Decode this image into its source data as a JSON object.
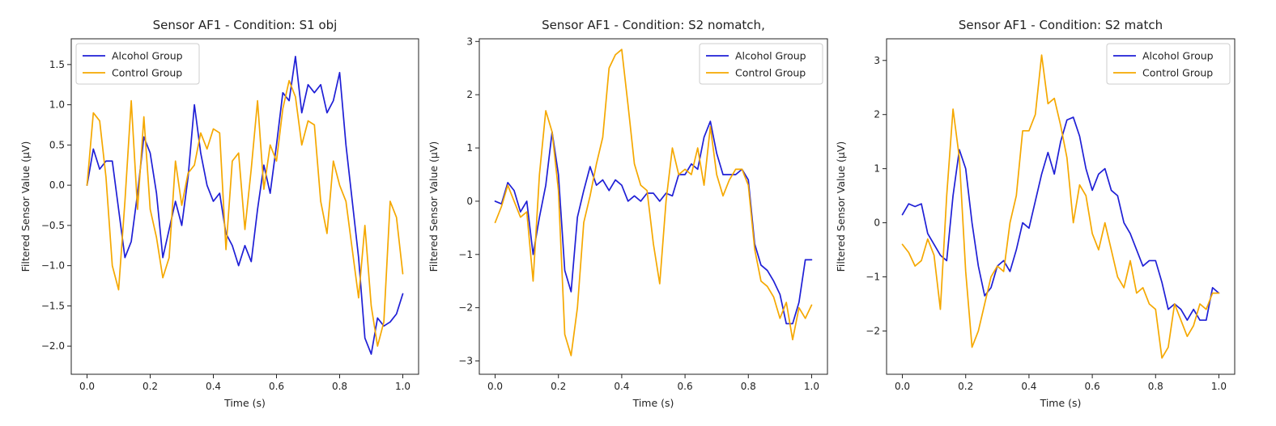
{
  "chart_data": [
    {
      "type": "line",
      "title": "Sensor AF1 - Condition: S1 obj",
      "xlabel": "Time (s)",
      "ylabel": "Filtered Sensor Value (μV)",
      "xlim": [
        0.0,
        1.0
      ],
      "ylim": [
        -2.35,
        1.82
      ],
      "xticks": [
        0.0,
        0.2,
        0.4,
        0.6,
        0.8,
        1.0
      ],
      "xtick_labels": [
        "0.0",
        "0.2",
        "0.4",
        "0.6",
        "0.8",
        "1.0"
      ],
      "yticks": [
        -2.0,
        -1.5,
        -1.0,
        -0.5,
        0.0,
        0.5,
        1.0,
        1.5
      ],
      "ytick_labels": [
        "−2.0",
        "−1.5",
        "−1.0",
        "−0.5",
        "0.0",
        "0.5",
        "1.0",
        "1.5"
      ],
      "legend": "upper left",
      "grid": false,
      "series": [
        {
          "name": "Alcohol Group",
          "color": "#1f1fd6",
          "x": [
            0.0,
            0.02,
            0.04,
            0.06,
            0.08,
            0.1,
            0.12,
            0.14,
            0.16,
            0.18,
            0.2,
            0.22,
            0.24,
            0.26,
            0.28,
            0.3,
            0.32,
            0.34,
            0.36,
            0.38,
            0.4,
            0.42,
            0.44,
            0.46,
            0.48,
            0.5,
            0.52,
            0.54,
            0.56,
            0.58,
            0.6,
            0.62,
            0.64,
            0.66,
            0.68,
            0.7,
            0.72,
            0.74,
            0.76,
            0.78,
            0.8,
            0.82,
            0.84,
            0.86,
            0.88,
            0.9,
            0.92,
            0.94,
            0.96,
            0.98,
            1.0
          ],
          "y": [
            0.0,
            0.45,
            0.2,
            0.3,
            0.3,
            -0.3,
            -0.9,
            -0.7,
            -0.1,
            0.6,
            0.4,
            -0.1,
            -0.9,
            -0.55,
            -0.2,
            -0.5,
            0.1,
            1.0,
            0.4,
            0.0,
            -0.2,
            -0.1,
            -0.6,
            -0.75,
            -1.0,
            -0.75,
            -0.95,
            -0.3,
            0.25,
            -0.1,
            0.5,
            1.15,
            1.05,
            1.6,
            0.9,
            1.25,
            1.15,
            1.25,
            0.9,
            1.05,
            1.4,
            0.5,
            -0.2,
            -0.9,
            -1.9,
            -2.1,
            -1.65,
            -1.75,
            -1.7,
            -1.6,
            -1.35
          ]
        },
        {
          "name": "Control Group",
          "color": "#f5a800",
          "x": [
            0.0,
            0.02,
            0.04,
            0.06,
            0.08,
            0.1,
            0.12,
            0.14,
            0.16,
            0.18,
            0.2,
            0.22,
            0.24,
            0.26,
            0.28,
            0.3,
            0.32,
            0.34,
            0.36,
            0.38,
            0.4,
            0.42,
            0.44,
            0.46,
            0.48,
            0.5,
            0.52,
            0.54,
            0.56,
            0.58,
            0.6,
            0.62,
            0.64,
            0.66,
            0.68,
            0.7,
            0.72,
            0.74,
            0.76,
            0.78,
            0.8,
            0.82,
            0.84,
            0.86,
            0.88,
            0.9,
            0.92,
            0.94,
            0.96,
            0.98,
            1.0
          ],
          "y": [
            0.0,
            0.9,
            0.8,
            0.1,
            -1.0,
            -1.3,
            -0.2,
            1.05,
            -0.3,
            0.85,
            -0.3,
            -0.65,
            -1.15,
            -0.9,
            0.3,
            -0.25,
            0.15,
            0.25,
            0.65,
            0.45,
            0.7,
            0.65,
            -0.8,
            0.3,
            0.4,
            -0.55,
            0.2,
            1.05,
            -0.05,
            0.5,
            0.3,
            0.95,
            1.3,
            1.1,
            0.5,
            0.8,
            0.75,
            -0.2,
            -0.6,
            0.3,
            0.0,
            -0.2,
            -0.8,
            -1.4,
            -0.5,
            -1.5,
            -2.0,
            -1.7,
            -0.2,
            -0.4,
            -1.1
          ]
        }
      ]
    },
    {
      "type": "line",
      "title": "Sensor AF1 - Condition: S2 nomatch,",
      "xlabel": "Time (s)",
      "ylabel": "Filtered Sensor Value (μV)",
      "xlim": [
        0.0,
        1.0
      ],
      "ylim": [
        -3.25,
        3.05
      ],
      "xticks": [
        0.0,
        0.2,
        0.4,
        0.6,
        0.8,
        1.0
      ],
      "xtick_labels": [
        "0.0",
        "0.2",
        "0.4",
        "0.6",
        "0.8",
        "1.0"
      ],
      "yticks": [
        -3,
        -2,
        -1,
        0,
        1,
        2,
        3
      ],
      "ytick_labels": [
        "−3",
        "−2",
        "−1",
        "0",
        "1",
        "2",
        "3"
      ],
      "legend": "upper right",
      "grid": false,
      "series": [
        {
          "name": "Alcohol Group",
          "color": "#1f1fd6",
          "x": [
            0.0,
            0.02,
            0.04,
            0.06,
            0.08,
            0.1,
            0.12,
            0.14,
            0.16,
            0.18,
            0.2,
            0.22,
            0.24,
            0.26,
            0.28,
            0.3,
            0.32,
            0.34,
            0.36,
            0.38,
            0.4,
            0.42,
            0.44,
            0.46,
            0.48,
            0.5,
            0.52,
            0.54,
            0.56,
            0.58,
            0.6,
            0.62,
            0.64,
            0.66,
            0.68,
            0.7,
            0.72,
            0.74,
            0.76,
            0.78,
            0.8,
            0.82,
            0.84,
            0.86,
            0.88,
            0.9,
            0.92,
            0.94,
            0.96,
            0.98,
            1.0
          ],
          "y": [
            0.0,
            -0.05,
            0.35,
            0.2,
            -0.2,
            0.0,
            -1.0,
            -0.3,
            0.3,
            1.3,
            0.5,
            -1.3,
            -1.7,
            -0.3,
            0.2,
            0.65,
            0.3,
            0.4,
            0.2,
            0.4,
            0.3,
            0.0,
            0.1,
            0.0,
            0.15,
            0.15,
            0.0,
            0.15,
            0.1,
            0.5,
            0.5,
            0.7,
            0.6,
            1.2,
            1.5,
            0.9,
            0.5,
            0.5,
            0.5,
            0.6,
            0.4,
            -0.8,
            -1.2,
            -1.3,
            -1.5,
            -1.75,
            -2.3,
            -2.3,
            -1.9,
            -1.1,
            -1.1
          ]
        },
        {
          "name": "Control Group",
          "color": "#f5a800",
          "x": [
            0.0,
            0.02,
            0.04,
            0.06,
            0.08,
            0.1,
            0.12,
            0.14,
            0.16,
            0.18,
            0.2,
            0.22,
            0.24,
            0.26,
            0.28,
            0.3,
            0.32,
            0.34,
            0.36,
            0.38,
            0.4,
            0.42,
            0.44,
            0.46,
            0.48,
            0.5,
            0.52,
            0.54,
            0.56,
            0.58,
            0.6,
            0.62,
            0.64,
            0.66,
            0.68,
            0.7,
            0.72,
            0.74,
            0.76,
            0.78,
            0.8,
            0.82,
            0.84,
            0.86,
            0.88,
            0.9,
            0.92,
            0.94,
            0.96,
            0.98,
            1.0
          ],
          "y": [
            -0.4,
            -0.1,
            0.3,
            0.0,
            -0.3,
            -0.2,
            -1.5,
            0.5,
            1.7,
            1.3,
            0.2,
            -2.5,
            -2.9,
            -2.0,
            -0.4,
            0.1,
            0.7,
            1.2,
            2.5,
            2.75,
            2.85,
            1.8,
            0.7,
            0.3,
            0.2,
            -0.8,
            -1.55,
            0.0,
            1.0,
            0.5,
            0.6,
            0.5,
            1.0,
            0.3,
            1.4,
            0.5,
            0.1,
            0.4,
            0.6,
            0.6,
            0.3,
            -0.9,
            -1.5,
            -1.6,
            -1.8,
            -2.2,
            -1.9,
            -2.6,
            -2.0,
            -2.2,
            -1.95
          ]
        }
      ]
    },
    {
      "type": "line",
      "title": "Sensor AF1 - Condition: S2 match",
      "xlabel": "Time (s)",
      "ylabel": "Filtered Sensor Value (μV)",
      "xlim": [
        0.0,
        1.0
      ],
      "ylim": [
        -2.8,
        3.4
      ],
      "xticks": [
        0.0,
        0.2,
        0.4,
        0.6,
        0.8,
        1.0
      ],
      "xtick_labels": [
        "0.0",
        "0.2",
        "0.4",
        "0.6",
        "0.8",
        "1.0"
      ],
      "yticks": [
        -2,
        -1,
        0,
        1,
        2,
        3
      ],
      "ytick_labels": [
        "−2",
        "−1",
        "0",
        "1",
        "2",
        "3"
      ],
      "legend": "upper right",
      "grid": false,
      "series": [
        {
          "name": "Alcohol Group",
          "color": "#1f1fd6",
          "x": [
            0.0,
            0.02,
            0.04,
            0.06,
            0.08,
            0.1,
            0.12,
            0.14,
            0.16,
            0.18,
            0.2,
            0.22,
            0.24,
            0.26,
            0.28,
            0.3,
            0.32,
            0.34,
            0.36,
            0.38,
            0.4,
            0.42,
            0.44,
            0.46,
            0.48,
            0.5,
            0.52,
            0.54,
            0.56,
            0.58,
            0.6,
            0.62,
            0.64,
            0.66,
            0.68,
            0.7,
            0.72,
            0.74,
            0.76,
            0.78,
            0.8,
            0.82,
            0.84,
            0.86,
            0.88,
            0.9,
            0.92,
            0.94,
            0.96,
            0.98,
            1.0
          ],
          "y": [
            0.15,
            0.35,
            0.3,
            0.35,
            -0.2,
            -0.4,
            -0.6,
            -0.7,
            0.5,
            1.35,
            1.0,
            0.0,
            -0.8,
            -1.35,
            -1.2,
            -0.8,
            -0.7,
            -0.9,
            -0.5,
            0.0,
            -0.1,
            0.4,
            0.9,
            1.3,
            0.9,
            1.5,
            1.9,
            1.95,
            1.6,
            1.0,
            0.6,
            0.9,
            1.0,
            0.6,
            0.5,
            0.0,
            -0.2,
            -0.5,
            -0.8,
            -0.7,
            -0.7,
            -1.1,
            -1.6,
            -1.5,
            -1.6,
            -1.8,
            -1.6,
            -1.8,
            -1.8,
            -1.2,
            -1.3
          ]
        },
        {
          "name": "Control Group",
          "color": "#f5a800",
          "x": [
            0.0,
            0.02,
            0.04,
            0.06,
            0.08,
            0.1,
            0.12,
            0.14,
            0.16,
            0.18,
            0.2,
            0.22,
            0.24,
            0.26,
            0.28,
            0.3,
            0.32,
            0.34,
            0.36,
            0.38,
            0.4,
            0.42,
            0.44,
            0.46,
            0.48,
            0.5,
            0.52,
            0.54,
            0.56,
            0.58,
            0.6,
            0.62,
            0.64,
            0.66,
            0.68,
            0.7,
            0.72,
            0.74,
            0.76,
            0.78,
            0.8,
            0.82,
            0.84,
            0.86,
            0.88,
            0.9,
            0.92,
            0.94,
            0.96,
            0.98,
            1.0
          ],
          "y": [
            -0.4,
            -0.55,
            -0.8,
            -0.7,
            -0.3,
            -0.6,
            -1.6,
            0.5,
            2.1,
            1.2,
            -0.9,
            -2.3,
            -2.0,
            -1.5,
            -1.0,
            -0.8,
            -0.9,
            0.0,
            0.5,
            1.7,
            1.7,
            2.0,
            3.1,
            2.2,
            2.3,
            1.8,
            1.2,
            0.0,
            0.7,
            0.5,
            -0.2,
            -0.5,
            0.0,
            -0.5,
            -1.0,
            -1.2,
            -0.7,
            -1.3,
            -1.2,
            -1.5,
            -1.6,
            -2.5,
            -2.3,
            -1.5,
            -1.8,
            -2.1,
            -1.9,
            -1.5,
            -1.6,
            -1.3,
            -1.3
          ]
        }
      ]
    }
  ]
}
